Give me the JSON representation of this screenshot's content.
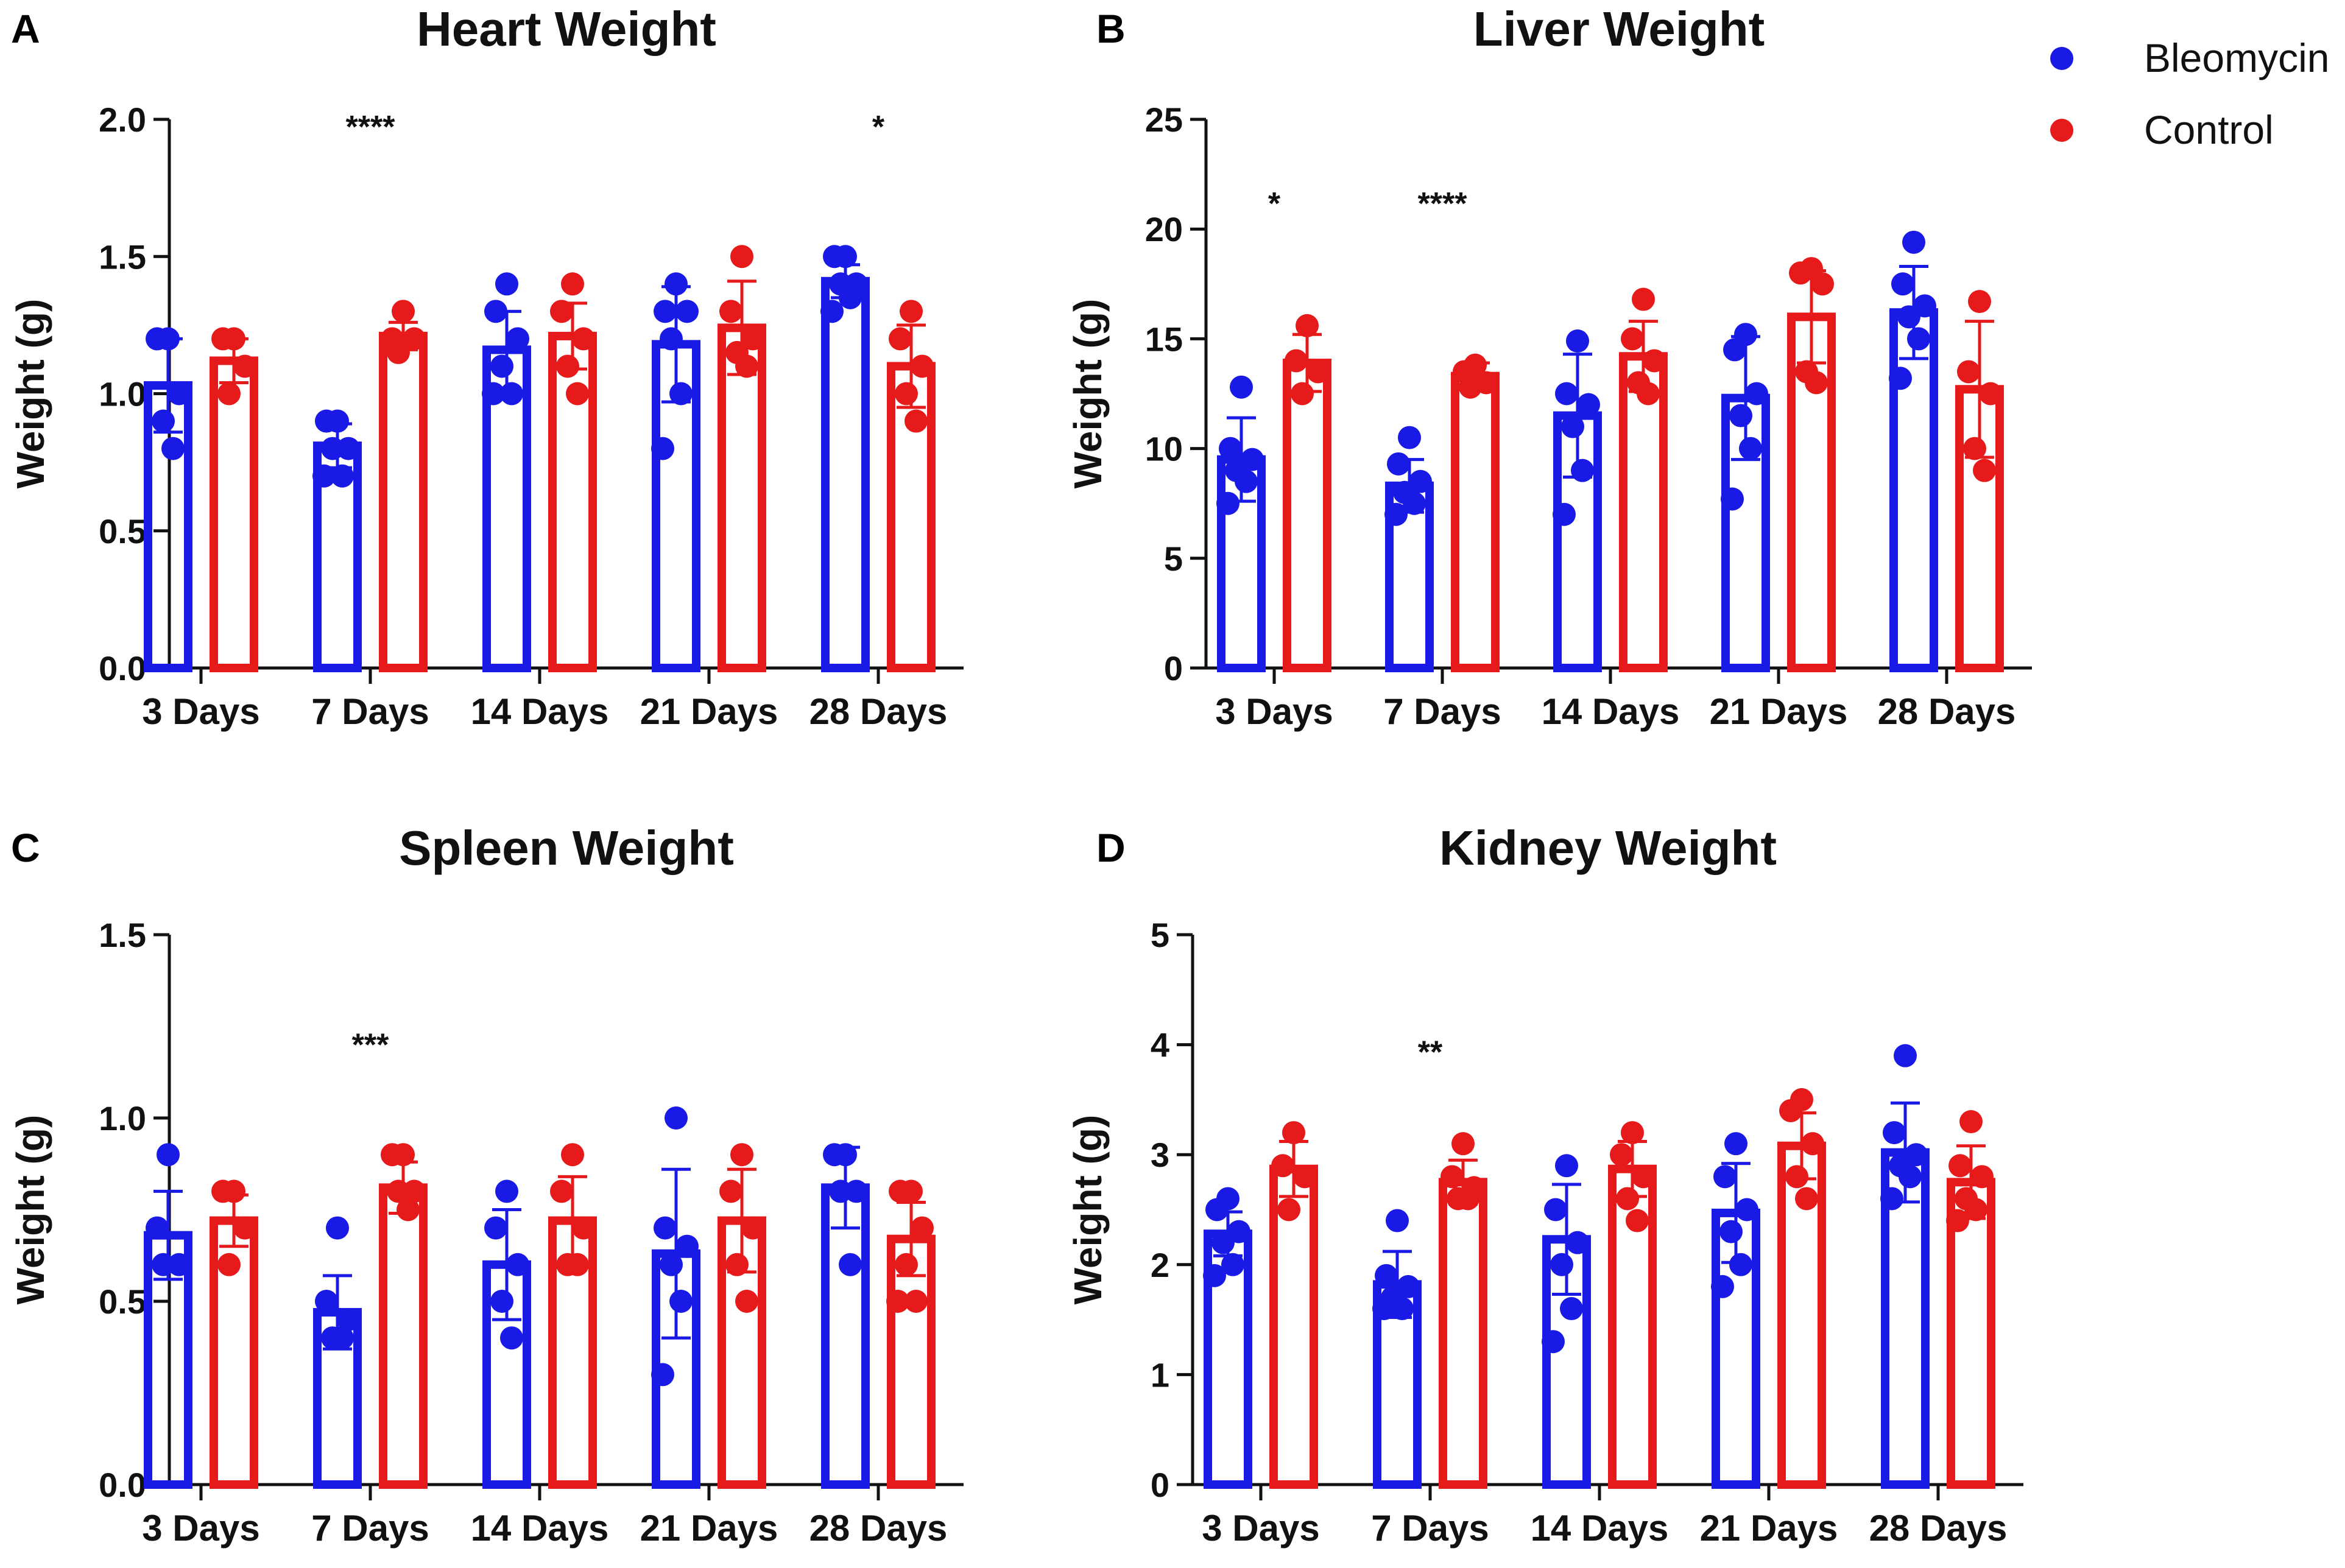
{
  "legend": [
    {
      "name": "Bleomycin",
      "color": "#1a1ae6"
    },
    {
      "name": "Control",
      "color": "#e61a1a"
    }
  ],
  "chart_data": [
    {
      "panel": "A",
      "type": "bar",
      "title": "Heart Weight",
      "ylabel": "Weight (g)",
      "xlabel": "",
      "categories": [
        "3 Days",
        "7 Days",
        "14 Days",
        "21 Days",
        "28 Days"
      ],
      "ylim": [
        0,
        2.0
      ],
      "yticks": [
        "0.0",
        "0.5",
        "1.0",
        "1.5",
        "2.0"
      ],
      "series": [
        {
          "name": "Bleomycin",
          "values": [
            1.03,
            0.81,
            1.16,
            1.18,
            1.41
          ],
          "errors": [
            0.17,
            0.08,
            0.14,
            0.21,
            0.06
          ],
          "points": [
            [
              1.2,
              1.2,
              1.0,
              0.9,
              0.8
            ],
            [
              0.9,
              0.9,
              0.8,
              0.8,
              0.7,
              0.7
            ],
            [
              1.4,
              1.3,
              1.2,
              1.1,
              1.0,
              1.0
            ],
            [
              1.4,
              1.3,
              1.3,
              1.2,
              1.0,
              0.8
            ],
            [
              1.5,
              1.5,
              1.4,
              1.4,
              1.35,
              1.3
            ]
          ]
        },
        {
          "name": "Control",
          "values": [
            1.12,
            1.21,
            1.21,
            1.24,
            1.1
          ],
          "errors": [
            0.08,
            0.05,
            0.12,
            0.17,
            0.15
          ],
          "points": [
            [
              1.2,
              1.2,
              1.1,
              1.0
            ],
            [
              1.3,
              1.2,
              1.2,
              1.15
            ],
            [
              1.4,
              1.3,
              1.2,
              1.1,
              1.0
            ],
            [
              1.5,
              1.3,
              1.2,
              1.15,
              1.1
            ],
            [
              1.3,
              1.2,
              1.1,
              1.0,
              0.9
            ]
          ]
        }
      ],
      "significance": [
        "",
        "****",
        "",
        "",
        "*"
      ],
      "sig_values": [
        null,
        2.0,
        null,
        null,
        2.0
      ]
    },
    {
      "panel": "B",
      "type": "bar",
      "title": "Liver Weight",
      "ylabel": "Weight (g)",
      "xlabel": "",
      "categories": [
        "3 Days",
        "7 Days",
        "14 Days",
        "21 Days",
        "28 Days"
      ],
      "ylim": [
        0,
        25
      ],
      "yticks": [
        "0",
        "5",
        "10",
        "15",
        "20",
        "25"
      ],
      "series": [
        {
          "name": "Bleomycin",
          "values": [
            9.5,
            8.3,
            11.5,
            12.3,
            16.2
          ],
          "errors": [
            1.9,
            1.2,
            2.8,
            2.8,
            2.1
          ],
          "points": [
            [
              12.8,
              10.0,
              9.5,
              9.0,
              8.5,
              7.5
            ],
            [
              10.5,
              9.3,
              8.5,
              8.0,
              7.5,
              7.0
            ],
            [
              14.9,
              12.5,
              12.0,
              11.0,
              9.0,
              7.0
            ],
            [
              15.2,
              14.5,
              12.5,
              11.5,
              10.0,
              7.7
            ],
            [
              19.4,
              17.5,
              16.5,
              16.0,
              15.0,
              13.2
            ]
          ]
        },
        {
          "name": "Control",
          "values": [
            13.9,
            13.3,
            14.2,
            16.0,
            12.7
          ],
          "errors": [
            1.3,
            0.6,
            1.6,
            2.1,
            3.1
          ],
          "points": [
            [
              15.6,
              14.0,
              13.5,
              12.5
            ],
            [
              13.8,
              13.5,
              13.0,
              12.8
            ],
            [
              16.8,
              15.0,
              14.0,
              13.0,
              12.5
            ],
            [
              18.2,
              18.0,
              17.5,
              13.5,
              13.0
            ],
            [
              16.7,
              13.5,
              12.5,
              10.0,
              9.0
            ]
          ]
        }
      ],
      "significance": [
        "*",
        "****",
        "",
        "",
        ""
      ],
      "sig_values": [
        21.5,
        21.5,
        null,
        null,
        null
      ]
    },
    {
      "panel": "C",
      "type": "bar",
      "title": "Spleen Weight",
      "ylabel": "Weight (g)",
      "xlabel": "",
      "categories": [
        "3 Days",
        "7 Days",
        "14 Days",
        "21 Days",
        "28 Days"
      ],
      "ylim": [
        0,
        1.5
      ],
      "yticks": [
        "0.0",
        "0.5",
        "1.0",
        "1.5"
      ],
      "series": [
        {
          "name": "Bleomycin",
          "values": [
            0.68,
            0.47,
            0.6,
            0.63,
            0.81
          ],
          "errors": [
            0.12,
            0.1,
            0.15,
            0.23,
            0.11
          ],
          "points": [
            [
              0.9,
              0.7,
              0.6,
              0.6
            ],
            [
              0.7,
              0.5,
              0.45,
              0.4,
              0.4
            ],
            [
              0.8,
              0.7,
              0.6,
              0.5,
              0.4
            ],
            [
              1.0,
              0.7,
              0.65,
              0.6,
              0.5,
              0.3
            ],
            [
              0.9,
              0.9,
              0.8,
              0.8,
              0.6
            ]
          ]
        },
        {
          "name": "Control",
          "values": [
            0.72,
            0.81,
            0.72,
            0.72,
            0.67
          ],
          "errors": [
            0.07,
            0.07,
            0.12,
            0.14,
            0.1
          ],
          "points": [
            [
              0.8,
              0.8,
              0.7,
              0.6
            ],
            [
              0.9,
              0.9,
              0.8,
              0.8,
              0.75
            ],
            [
              0.9,
              0.8,
              0.7,
              0.6,
              0.6
            ],
            [
              0.9,
              0.8,
              0.7,
              0.6,
              0.5
            ],
            [
              0.8,
              0.8,
              0.7,
              0.6,
              0.5,
              0.5
            ]
          ]
        }
      ],
      "significance": [
        "",
        "***",
        "",
        "",
        ""
      ],
      "sig_values": [
        null,
        1.22,
        null,
        null,
        null
      ]
    },
    {
      "panel": "D",
      "type": "bar",
      "title": "Kidney Weight",
      "ylabel": "Weight (g)",
      "xlabel": "",
      "categories": [
        "3 Days",
        "7 Days",
        "14 Days",
        "21 Days",
        "28 Days"
      ],
      "ylim": [
        0,
        5
      ],
      "yticks": [
        "0",
        "1",
        "2",
        "3",
        "4",
        "5"
      ],
      "series": [
        {
          "name": "Bleomycin",
          "values": [
            2.28,
            1.82,
            2.23,
            2.47,
            3.02
          ],
          "errors": [
            0.2,
            0.3,
            0.5,
            0.45,
            0.45
          ],
          "points": [
            [
              2.6,
              2.5,
              2.3,
              2.2,
              2.0,
              1.9
            ],
            [
              2.4,
              1.9,
              1.8,
              1.7,
              1.6,
              1.6
            ],
            [
              2.9,
              2.5,
              2.2,
              2.0,
              1.6,
              1.3
            ],
            [
              3.1,
              2.8,
              2.5,
              2.3,
              2.0,
              1.8
            ],
            [
              3.9,
              3.2,
              3.0,
              2.9,
              2.8,
              2.6
            ]
          ]
        },
        {
          "name": "Control",
          "values": [
            2.87,
            2.75,
            2.87,
            3.08,
            2.75
          ],
          "errors": [
            0.25,
            0.2,
            0.25,
            0.3,
            0.33
          ],
          "points": [
            [
              3.2,
              2.9,
              2.8,
              2.5
            ],
            [
              3.1,
              2.8,
              2.7,
              2.6,
              2.6
            ],
            [
              3.2,
              3.0,
              2.8,
              2.6,
              2.4
            ],
            [
              3.5,
              3.4,
              3.1,
              2.8,
              2.6
            ],
            [
              3.3,
              2.9,
              2.8,
              2.6,
              2.5,
              2.4
            ]
          ]
        }
      ],
      "significance": [
        "",
        "**",
        "",
        "",
        ""
      ],
      "sig_values": [
        null,
        4.0,
        null,
        null,
        null
      ]
    }
  ]
}
